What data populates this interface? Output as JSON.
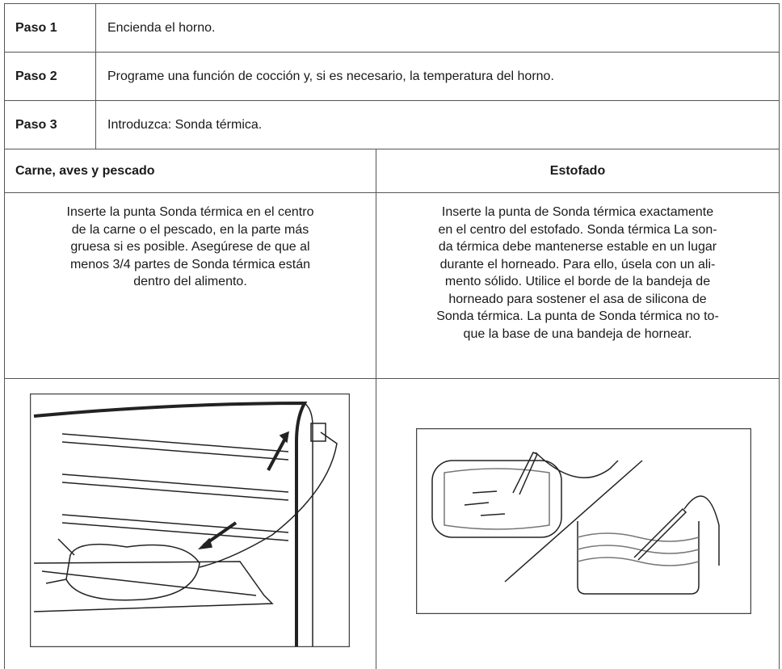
{
  "steps": [
    {
      "label": "Paso 1",
      "text": "Encienda el horno."
    },
    {
      "label": "Paso 2",
      "text": "Programe una función de cocción y, si es necesario, la temperatura del horno."
    },
    {
      "label": "Paso 3",
      "text": "Introduzca: Sonda térmica."
    }
  ],
  "columns": [
    {
      "heading": "Carne, aves y pescado",
      "lines": [
        "Inserte la punta Sonda térmica en el centro",
        "de la carne o el pescado, en la parte más",
        "gruesa si es posible. Asegúrese de que al",
        "menos 3/4 partes de Sonda térmica están",
        "dentro del alimento."
      ]
    },
    {
      "heading": "Estofado",
      "lines": [
        "Inserte la punta de Sonda térmica exactamente",
        "en el centro del estofado. Sonda térmica La son-",
        "da térmica debe mantenerse estable en un lugar",
        "durante el horneado. Para ello, úsela con un ali-",
        "mento sólido. Utilice el borde de la bandeja de",
        "horneado para sostener el asa de silicona de",
        "Sonda térmica. La punta de Sonda térmica no to-",
        "que la base de una bandeja de hornear."
      ]
    }
  ]
}
